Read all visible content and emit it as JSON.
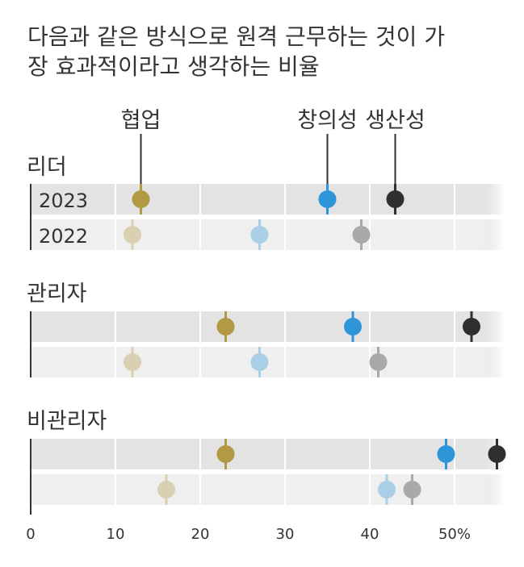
{
  "chart_data": {
    "type": "scatter",
    "title": "다음과 같은 방식으로 원격 근무하는 것이 가장 효과적이라고 생각하는 비율",
    "title_lines": [
      "다음과 같은 방식으로 원격 근무하는 것이 가",
      "장 효과적이라고 생각하는 비율"
    ],
    "series": [
      {
        "name": "협업",
        "color_2023": "#b29a45",
        "color_2022": "#d9d0b3"
      },
      {
        "name": "창의성",
        "color_2023": "#2e96d8",
        "color_2022": "#a8cfe6"
      },
      {
        "name": "생산성",
        "color_2023": "#2f2f2f",
        "color_2022": "#a9a9a9"
      }
    ],
    "groups": [
      {
        "name": "리더",
        "rows": [
          {
            "year": "2023",
            "show_year": true,
            "values": [
              13,
              35,
              43
            ]
          },
          {
            "year": "2022",
            "show_year": true,
            "values": [
              12,
              27,
              39
            ]
          }
        ]
      },
      {
        "name": "관리자",
        "rows": [
          {
            "year": "2023",
            "show_year": false,
            "values": [
              23,
              38,
              52
            ]
          },
          {
            "year": "2022",
            "show_year": false,
            "values": [
              12,
              27,
              41
            ]
          }
        ]
      },
      {
        "name": "비관리자",
        "rows": [
          {
            "year": "2023",
            "show_year": false,
            "values": [
              23,
              49,
              55
            ]
          },
          {
            "year": "2022",
            "show_year": false,
            "values": [
              16,
              42,
              45
            ]
          }
        ]
      }
    ],
    "x_ticks": [
      0,
      10,
      20,
      30,
      40,
      50
    ],
    "x_tick_labels": [
      "0",
      "10",
      "20",
      "30",
      "40",
      "50%"
    ],
    "xlim": [
      0,
      55
    ],
    "xlabel": "",
    "ylabel": ""
  }
}
